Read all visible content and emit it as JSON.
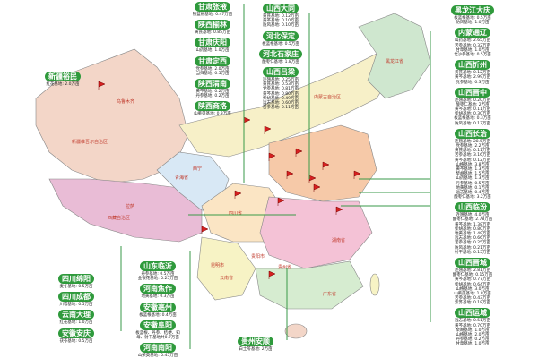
{
  "map": {
    "accent": "#2f9a3c",
    "province_labels": [
      "新疆维吾尔自治区",
      "西藏自治区",
      "青海省",
      "内蒙古自治区",
      "黑龙江省",
      "四川省",
      "云南省",
      "贵州省",
      "广东省",
      "湖南省"
    ],
    "city_labels": [
      "乌鲁木齐",
      "拉萨",
      "西宁",
      "昆明市",
      "贵阳市"
    ]
  },
  "labels": [
    {
      "title": "甘肃张掖",
      "lines": [
        "铁蓝根基地: 0.47万亩"
      ]
    },
    {
      "title": "陕西榆林",
      "lines": [
        "黄芪基地: 0.85万亩"
      ]
    },
    {
      "title": "甘肃庆阳",
      "lines": [
        "山药基地: 1.0万亩"
      ]
    },
    {
      "title": "甘肃定西",
      "lines": [
        "党参基地: 2.0万亩",
        "当归基地: 0.5万亩"
      ]
    },
    {
      "title": "陕西渭南",
      "lines": [
        "黄芩基地: 0.2万亩",
        "丹参基地: 0.2万亩"
      ]
    },
    {
      "title": "陕西商洛",
      "lines": [
        "山茱萸基地: 0.3万亩"
      ]
    },
    {
      "title": "山西大同",
      "lines": [
        "黄芪基地: 0.12万亩",
        "黄芩基地: 0.10万亩",
        "防风基地: 0.10万亩"
      ]
    },
    {
      "title": "河北保定",
      "lines": [
        "板蓝根基地: 0.5万亩"
      ]
    },
    {
      "title": "河北石家庄",
      "lines": [
        "酸枣仁基地: 1.8万亩"
      ]
    },
    {
      "title": "山西吕梁",
      "lines": [
        "连翘基地: 0.25万亩",
        "黄芪基地: 0.53万亩",
        "党参基地: 0.81万亩",
        "黄芩基地: 0.80万亩",
        "柴胡基地: 0.49万亩",
        "远志基地: 0.60万亩",
        "苦参基地: 0.11万亩"
      ]
    },
    {
      "title": "黑龙江大庆",
      "lines": [
        "板蓝根基地: 0.5万亩",
        "防风基地: 1.0万亩"
      ]
    },
    {
      "title": "内蒙通辽",
      "lines": [
        "山药基地: 2.65万亩",
        "苦参基地: 0.32万亩",
        "甘草基地: 1.0万亩",
        "北沙参基地: 0.5万亩"
      ]
    },
    {
      "title": "山西忻州",
      "lines": [
        "黄芪基地: 0.12万亩",
        "黄芩基地: 2.99万亩",
        "党参基地: 0.3万亩"
      ]
    },
    {
      "title": "山西晋中",
      "lines": [
        "连翘基地: 0.20万亩",
        "酸枣仁基地: 2万亩",
        "黄芩基地: 0.11万亩",
        "柴胡基地: 0.30万亩",
        "板蓝根基地: 0.3万亩",
        "防风基地: 0.17万亩"
      ]
    },
    {
      "title": "山西长治",
      "lines": [
        "连翘基地: 28.5万亩",
        "党参基地: 2.2万亩",
        "黄芪基地: 0.11万亩",
        "苦参基地: 3.16万亩",
        "黄芩基地: 0.12万亩",
        "山楂基地: 3.8万亩",
        "黄芩基地: 1.3万亩",
        "柴胡基地: 1.5万亩",
        "山药基地: 1.3万亩",
        "丹参基地: 0.5万亩",
        "地黄基地: 0.1万亩",
        "远志基地: 0.4万亩",
        "酸枣仁基地: 3.2万亩"
      ]
    },
    {
      "title": "山西临汾",
      "lines": [
        "连翘基地: 4.0万亩",
        "酸枣仁基地: 2.78万亩",
        "黄芩基地: 1.38万亩",
        "柴胡基地: 0.80万亩",
        "地黄基地: 1.49万亩",
        "远志基地: 0.66万亩",
        "苦参基地: 0.25万亩",
        "防风基地: 0.21万亩",
        "射干基地: 0.15万亩"
      ]
    },
    {
      "title": "山西晋城",
      "lines": [
        "连翘基地: 2.81万亩",
        "酸枣仁基地: 0.15万亩",
        "黄芩基地: 0.77万亩",
        "柴胡基地: 0.64万亩",
        "山楂基地: 3.0万亩",
        "山茱萸基地: 1.8万亩",
        "苦参基地: 0.43万亩",
        "紫苏基地: 0.18万亩"
      ]
    },
    {
      "title": "山西运城",
      "lines": [
        "远志基地: 0.51万亩",
        "黄芩基地: 0.70万亩",
        "柴胡基地: 1.0万亩",
        "山楂基地: 2.0万亩",
        "丹参基地: 0.2万亩",
        "甘草基地: 1.0万亩"
      ]
    },
    {
      "title": "新疆裕民",
      "lines": [
        "红花基地: 2.0万亩"
      ]
    },
    {
      "title": "四川绵阳",
      "lines": [
        "麦冬基地: 0.5万亩"
      ]
    },
    {
      "title": "四川成都",
      "lines": [
        "川芎基地: 0.5万亩"
      ]
    },
    {
      "title": "云南大理",
      "lines": [
        "红花基地: 1.0万亩"
      ]
    },
    {
      "title": "安徽安庆",
      "lines": [
        "茯苓基地: 0.5万亩"
      ]
    },
    {
      "title": "山东临沂",
      "lines": [
        "丹参基地: 0.5万亩",
        "金银花基地: 0.25万亩"
      ]
    },
    {
      "title": "河南焦作",
      "lines": [
        "地黄基地: 0.3万亩"
      ]
    },
    {
      "title": "安徽亳州",
      "lines": [
        "板蓝根基地: 0.4万亩"
      ]
    },
    {
      "title": "安徽阜阳",
      "lines": [
        "板蓝根、丹参、桔梗、知",
        "母、射干基地共0.7万亩"
      ]
    },
    {
      "title": "河南南阳",
      "lines": [
        "山茱萸基地: 0.45万亩"
      ]
    },
    {
      "title": "贵州安顺",
      "lines": [
        "白土苓基地: 2万亩"
      ]
    }
  ]
}
